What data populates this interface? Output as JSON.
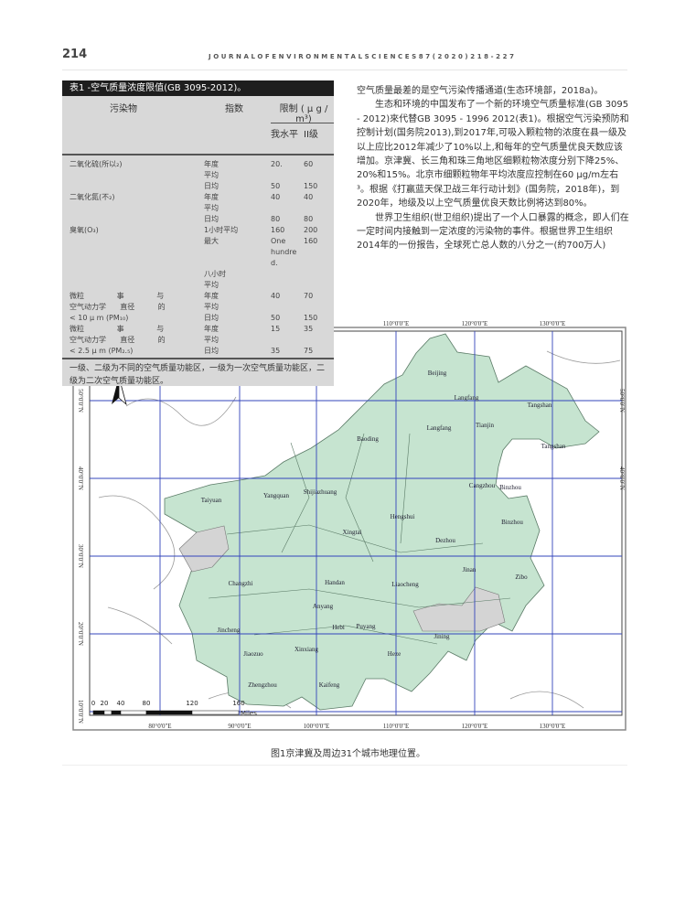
{
  "header": {
    "page_number": "214",
    "journal": "JOURNALOFENVIRONMENTALSCIENCES87(2020)218-227"
  },
  "table": {
    "title": "表1 -空气质量浓度限值(GB 3095-2012)。",
    "col_pollutant": "污染物",
    "col_index": "指数",
    "col_limit": "限制 ( μ g / m³)",
    "col_level1": "我水平",
    "col_level2": "II级",
    "rows": [
      {
        "p": "二氧化硫(所以₂)",
        "i": "年度",
        "a": "20.",
        "b": "60"
      },
      {
        "p": "",
        "i": "平均",
        "a": "",
        "b": ""
      },
      {
        "p": "",
        "i": "日均",
        "a": "50",
        "b": "150"
      },
      {
        "p": "二氧化氮(不₂)",
        "i": "年度",
        "a": "40",
        "b": "40"
      },
      {
        "p": "",
        "i": "平均",
        "a": "",
        "b": ""
      },
      {
        "p": "",
        "i": "日均",
        "a": "80",
        "b": "80"
      },
      {
        "p": "臭氧(O₃)",
        "i": "1小时平均",
        "a": "160",
        "b": "200"
      },
      {
        "p": "",
        "i": "最大",
        "a": "One",
        "b": "160"
      },
      {
        "p": "",
        "i": "",
        "a": "hundre",
        "b": ""
      },
      {
        "p": "",
        "i": "",
        "a": "d.",
        "b": ""
      },
      {
        "p": "",
        "i": "八小时",
        "a": "",
        "b": ""
      },
      {
        "p": "",
        "i": "平均",
        "a": "",
        "b": ""
      },
      {
        "p": "微粒              事              与",
        "i": "年度",
        "a": "40",
        "b": "70"
      },
      {
        "p": "空气动力学      直径          的",
        "i": "平均",
        "a": "",
        "b": ""
      },
      {
        "p": "< 10 μ m (PM₁₀)",
        "i": "日均",
        "a": "50",
        "b": "150"
      },
      {
        "p": "微粒              事              与",
        "i": "年度",
        "a": "15",
        "b": "35"
      },
      {
        "p": "空气动力学      直径          的",
        "i": "平均",
        "a": "",
        "b": ""
      },
      {
        "p": "< 2.5 μ m (PM₂.₅)",
        "i": "日均",
        "a": "35",
        "b": "75"
      }
    ],
    "footnote": "一级、二级为不同的空气质量功能区，一级为一次空气质量功能区，二级为二次空气质量功能区。"
  },
  "body": {
    "p1": "空气质量最差的是空气污染传播通道(生态环境部，2018a)。",
    "p2": "生态和环境的中国发布了一个新的环境空气质量标准(GB 3095 - 2012)來代替GB 3095 - 1996 2012(表1)。根据空气污染预防和控制计划(国务院2013),到2017年,可吸入颗粒物的浓度在县一级及以上应比2012年减少了10%以上,和每年的空气质量优良天数应该增加。京津冀、长三角和珠三角地区细颗粒物浓度分别下降25%、20%和15%。北京市细颗粒物年平均浓度应控制在60 μg/m左右³。根据《打赢蓝天保卫战三年行动计划》(国务院，2018年)，到2020年，地级及以上空气质量优良天数比例将达到80%。",
    "p3": "世界卫生组织(世卫组织)提出了一个人口暴露的概念，即人们在一定时间内接触到一定浓度的污染物的事件。根据世界卫生组织2014年的一份报告，全球死亡总人数的八分之一(約700万人)"
  },
  "map": {
    "lon_labels": [
      "80°0'0\"E",
      "90°0'0\"E",
      "100°0'0\"E",
      "110°0'0\"E",
      "120°0'0\"E",
      "130°0'0\"E"
    ],
    "lat_labels": [
      "50°0'0\"N",
      "40°0'0\"N",
      "30°0'0\"N",
      "20°0'0\"N",
      "10°0'0\"N"
    ],
    "scale_labels": [
      "0",
      "20",
      "40",
      "80",
      "120",
      "160"
    ],
    "scale_unit": "Miles",
    "cities": [
      "Beijing",
      "Langfang",
      "Tangshan",
      "Langfang",
      "Tianjin",
      "Tangshan",
      "Baoding",
      "Cangzhou",
      "Binzhou",
      "Shijiazhuang",
      "Yangquan",
      "Taiyuan",
      "Hengshui",
      "Xingtai",
      "Dezhou",
      "Binzhou",
      "Jinan",
      "Zibo",
      "Changzhi",
      "Handan",
      "Liaocheng",
      "Anyang",
      "Hebi",
      "Puyang",
      "Jincheng",
      "Jining",
      "Xinxiang",
      "Jiaozuo",
      "Heze",
      "Zhengzhou",
      "Kaifeng"
    ],
    "colors": {
      "region": "#c6e4d0",
      "excluded": "#d4d4d4",
      "grid": "#3344bb",
      "border": "#999999"
    }
  },
  "caption": "图1京津冀及周边31个城市地理位置。"
}
